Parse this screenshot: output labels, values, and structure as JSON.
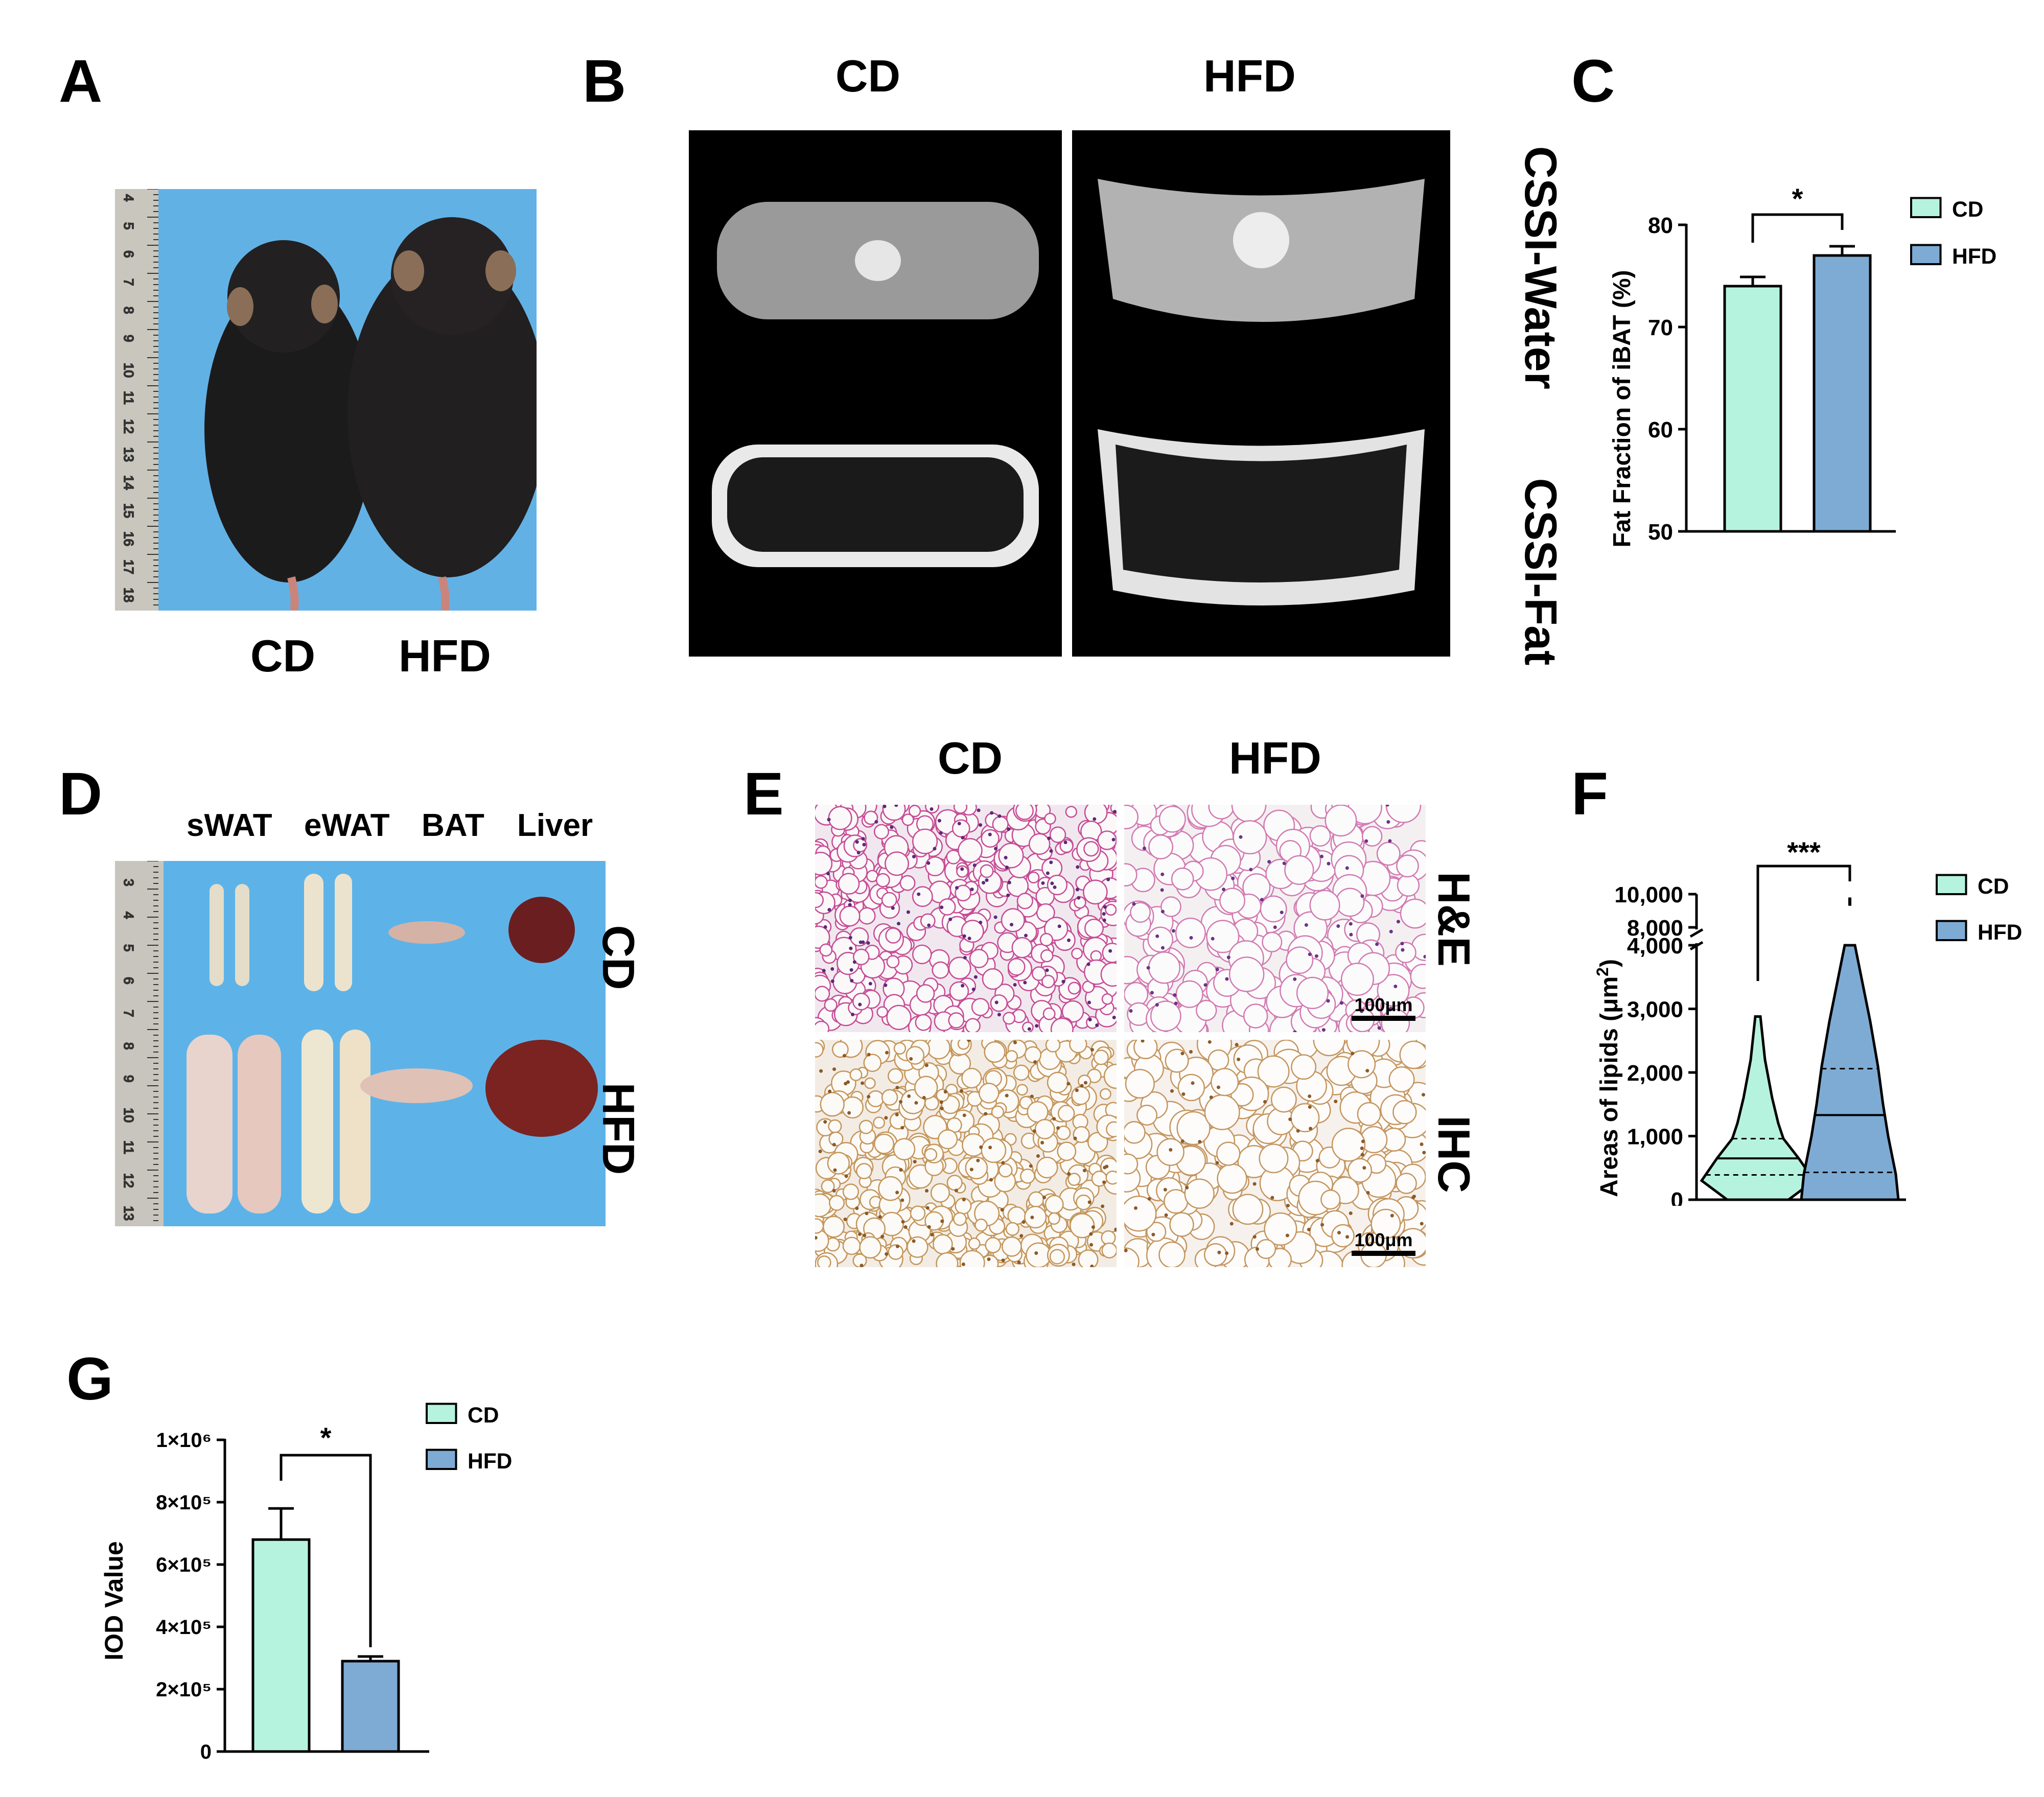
{
  "figure": {
    "panels": {
      "A": {
        "letter": "A",
        "labels": [
          "CD",
          "HFD"
        ]
      },
      "B": {
        "letter": "B",
        "col_labels": [
          "CD",
          "HFD"
        ],
        "row_labels": [
          "CSSI-Water",
          "CSSI-Fat"
        ]
      },
      "C": {
        "letter": "C"
      },
      "D": {
        "letter": "D",
        "col_labels": [
          "sWAT",
          "eWAT",
          "BAT",
          "Liver"
        ],
        "row_labels": [
          "CD",
          "HFD"
        ]
      },
      "E": {
        "letter": "E",
        "col_labels": [
          "CD",
          "HFD"
        ],
        "row_labels": [
          "H&E",
          "IHC"
        ],
        "scale_bar": "100μm"
      },
      "F": {
        "letter": "F"
      },
      "G": {
        "letter": "G"
      }
    },
    "ruler_numbers_A": [
      "4",
      "5",
      "6",
      "7",
      "8",
      "9",
      "10",
      "11",
      "12",
      "13",
      "14",
      "15",
      "16",
      "17",
      "18"
    ],
    "ruler_numbers_D": [
      "3",
      "4",
      "5",
      "6",
      "7",
      "8",
      "9",
      "10",
      "11",
      "12",
      "13"
    ]
  },
  "colors": {
    "CD": "#b6f3df",
    "HFD": "#7eabd3",
    "photo_bg": "#67b4e6",
    "mri_bg": "#000000"
  },
  "chart_data": [
    {
      "panel": "C",
      "type": "bar",
      "categories": [
        "CD",
        "HFD"
      ],
      "values": [
        74,
        77
      ],
      "errors": [
        0.9,
        0.9
      ],
      "ylabel": "Fat Fraction of iBAT (%)",
      "ylim": [
        50,
        80
      ],
      "yticks": [
        "50",
        "60",
        "70",
        "80"
      ],
      "significance": "*",
      "legend": [
        "CD",
        "HFD"
      ]
    },
    {
      "panel": "F",
      "type": "violin",
      "categories": [
        "CD",
        "HFD"
      ],
      "medians": [
        650,
        1330
      ],
      "quartiles": [
        [
          390,
          960
        ],
        [
          430,
          2060
        ]
      ],
      "ranges": [
        [
          0,
          2880
        ],
        [
          0,
          9800
        ]
      ],
      "ylabel": "Areas of lipids (μm2)",
      "yticks_lower": [
        "0",
        "1,000",
        "2,000",
        "3,000",
        "4,000"
      ],
      "yticks_upper": [
        "8,000",
        "10,000"
      ],
      "significance": "***",
      "legend": [
        "CD",
        "HFD"
      ]
    },
    {
      "panel": "G",
      "type": "bar",
      "categories": [
        "CD",
        "HFD"
      ],
      "values": [
        680000,
        290000
      ],
      "errors": [
        100000,
        15000
      ],
      "ylabel": "IOD Value",
      "ylim": [
        0,
        1000000
      ],
      "yticks": [
        "0",
        "2×10⁵",
        "4×10⁵",
        "6×10⁵",
        "8×10⁵",
        "1×10⁶"
      ],
      "significance": "*",
      "legend": [
        "CD",
        "HFD"
      ]
    }
  ]
}
